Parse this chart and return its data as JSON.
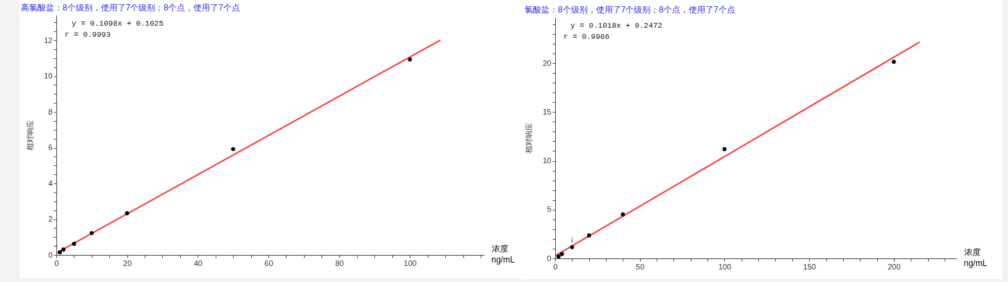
{
  "chart_data": [
    {
      "type": "scatter",
      "title": "高氯酸盐：8个级别，使用了7个级别；8个点，使用了7个点",
      "xlabel": "浓度\nng/mL",
      "ylabel": "相对响应",
      "xlim": [
        0,
        121
      ],
      "ylim": [
        0,
        13.4
      ],
      "xticks": [
        0,
        {
          "value": 5,
          "label": null
        },
        {
          "value": 10,
          "label": null
        },
        {
          "value": 15,
          "label": null
        },
        20,
        {
          "value": 25,
          "label": null
        },
        {
          "value": 30,
          "label": null
        },
        {
          "value": 35,
          "label": null
        },
        40,
        {
          "value": 45,
          "label": null
        },
        {
          "value": 50,
          "label": null
        },
        {
          "value": 55,
          "label": null
        },
        60,
        {
          "value": 65,
          "label": null
        },
        {
          "value": 70,
          "label": null
        },
        {
          "value": 75,
          "label": null
        },
        80,
        {
          "value": 85,
          "label": null
        },
        {
          "value": 90,
          "label": null
        },
        {
          "value": 95,
          "label": null
        },
        100,
        {
          "value": 105,
          "label": null
        },
        {
          "value": 110,
          "label": null
        },
        {
          "value": 115,
          "label": null
        },
        {
          "value": 120,
          "label": null
        }
      ],
      "yticks": [
        0,
        {
          "value": 0.5,
          "label": null
        },
        {
          "value": 1,
          "label": null
        },
        {
          "value": 1.5,
          "label": null
        },
        2,
        {
          "value": 2.5,
          "label": null
        },
        {
          "value": 3,
          "label": null
        },
        {
          "value": 3.5,
          "label": null
        },
        4,
        {
          "value": 4.5,
          "label": null
        },
        {
          "value": 5,
          "label": null
        },
        {
          "value": 5.5,
          "label": null
        },
        6,
        {
          "value": 6.5,
          "label": null
        },
        {
          "value": 7,
          "label": null
        },
        {
          "value": 7.5,
          "label": null
        },
        8,
        {
          "value": 8.5,
          "label": null
        },
        {
          "value": 9,
          "label": null
        },
        {
          "value": 9.5,
          "label": null
        },
        10,
        {
          "value": 10.5,
          "label": null
        },
        {
          "value": 11,
          "label": null
        },
        {
          "value": 11.5,
          "label": null
        },
        12,
        {
          "value": 12.5,
          "label": null
        },
        {
          "value": 13,
          "label": null
        }
      ],
      "grid": false,
      "series": [
        {
          "type": "line",
          "color": "#ff3333",
          "marker": "none",
          "x": [
            0,
            108.5
          ],
          "values": [
            0.1,
            12.0
          ]
        },
        {
          "color": "#000000",
          "marker": "circle",
          "x": [
            1,
            2,
            5,
            10,
            20,
            50,
            100
          ],
          "values": [
            0.15,
            0.3,
            0.62,
            1.22,
            2.33,
            5.92,
            10.93
          ]
        }
      ],
      "annotations": [
        "y = 0.1098x + 0.1025",
        "r = 0.9993"
      ]
    },
    {
      "type": "scatter",
      "title": "氯酸盐：8个级别，使用了7个级别；8个点，使用了7个点",
      "xlabel": "浓度\nng/mL",
      "ylabel": "相对响应",
      "xlim": [
        0,
        237
      ],
      "ylim": [
        0,
        24.7
      ],
      "xticks": [
        0,
        {
          "value": 10,
          "label": null
        },
        {
          "value": 20,
          "label": null
        },
        {
          "value": 30,
          "label": null
        },
        {
          "value": 40,
          "label": null
        },
        50,
        {
          "value": 60,
          "label": null
        },
        {
          "value": 70,
          "label": null
        },
        {
          "value": 80,
          "label": null
        },
        {
          "value": 90,
          "label": null
        },
        100,
        {
          "value": 110,
          "label": null
        },
        {
          "value": 120,
          "label": null
        },
        {
          "value": 130,
          "label": null
        },
        {
          "value": 140,
          "label": null
        },
        150,
        {
          "value": 160,
          "label": null
        },
        {
          "value": 170,
          "label": null
        },
        {
          "value": 180,
          "label": null
        },
        {
          "value": 190,
          "label": null
        },
        200,
        {
          "value": 210,
          "label": null
        },
        {
          "value": 220,
          "label": null
        },
        {
          "value": 230,
          "label": null
        }
      ],
      "yticks": [
        0,
        {
          "value": 1,
          "label": null
        },
        {
          "value": 2,
          "label": null
        },
        {
          "value": 3,
          "label": null
        },
        {
          "value": 4,
          "label": null
        },
        5,
        {
          "value": 6,
          "label": null
        },
        {
          "value": 7,
          "label": null
        },
        {
          "value": 8,
          "label": null
        },
        {
          "value": 9,
          "label": null
        },
        10,
        {
          "value": 11,
          "label": null
        },
        {
          "value": 12,
          "label": null
        },
        {
          "value": 13,
          "label": null
        },
        {
          "value": 14,
          "label": null
        },
        15,
        {
          "value": 16,
          "label": null
        },
        {
          "value": 17,
          "label": null
        },
        {
          "value": 18,
          "label": null
        },
        {
          "value": 19,
          "label": null
        },
        20,
        {
          "value": 21,
          "label": null
        },
        {
          "value": 22,
          "label": null
        },
        {
          "value": 23,
          "label": null
        },
        {
          "value": 24,
          "label": null
        }
      ],
      "grid": false,
      "series": [
        {
          "type": "line",
          "color": "#ff3333",
          "marker": "none",
          "x": [
            0,
            215
          ],
          "values": [
            0.25,
            22.14
          ]
        },
        {
          "color": "#000000",
          "marker": "circle",
          "x": [
            2,
            4,
            10,
            20,
            40,
            100,
            200
          ],
          "values": [
            0.2,
            0.45,
            1.15,
            2.35,
            4.5,
            11.2,
            20.15
          ]
        }
      ],
      "annotations": [
        "y = 0.1018x + 0.2472",
        "r = 0.9986",
        {
          "text": "↓",
          "x": 10,
          "y": 1.15
        }
      ]
    }
  ]
}
